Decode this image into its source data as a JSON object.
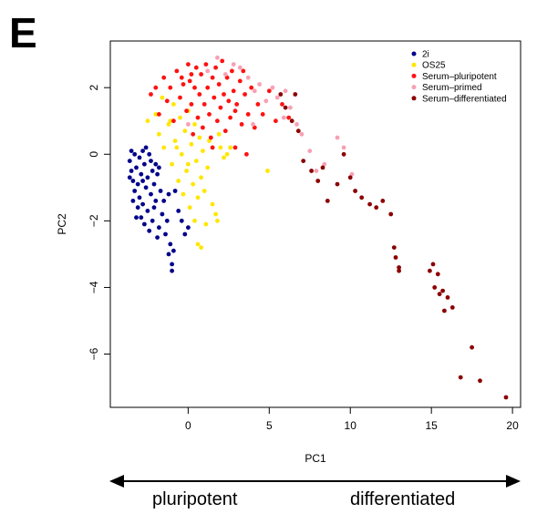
{
  "panel_label": "E",
  "arrow_labels": {
    "left": "pluripotent",
    "right": "differentiated"
  },
  "chart_data": {
    "type": "scatter",
    "xlabel": "PC1",
    "ylabel": "PC2",
    "xlim": [
      -4.8,
      20.5
    ],
    "ylim": [
      -7.6,
      3.4
    ],
    "xticks": [
      0,
      5,
      10,
      15,
      20
    ],
    "yticks": [
      2,
      0,
      -2,
      -4,
      -6
    ],
    "grid": false,
    "legend_position": "top-right",
    "series": [
      {
        "name": "2i",
        "color": "#00008b",
        "points": [
          [
            -3.6,
            -0.2
          ],
          [
            -3.5,
            -0.5
          ],
          [
            -3.4,
            -0.8
          ],
          [
            -3.3,
            -1.1
          ],
          [
            -3.2,
            -0.4
          ],
          [
            -3.1,
            -0.9
          ],
          [
            -3.0,
            -0.1
          ],
          [
            -3.0,
            -1.3
          ],
          [
            -2.9,
            -0.6
          ],
          [
            -2.8,
            0.1
          ],
          [
            -2.8,
            -1.5
          ],
          [
            -2.7,
            -0.3
          ],
          [
            -2.6,
            -1.0
          ],
          [
            -2.5,
            -0.7
          ],
          [
            -2.5,
            -1.7
          ],
          [
            -2.4,
            0.0
          ],
          [
            -2.3,
            -1.2
          ],
          [
            -2.2,
            -0.5
          ],
          [
            -2.2,
            -2.0
          ],
          [
            -2.1,
            -0.9
          ],
          [
            -2.0,
            -1.4
          ],
          [
            -1.9,
            -0.6
          ],
          [
            -1.8,
            -2.2
          ],
          [
            -1.7,
            -1.1
          ],
          [
            -1.6,
            -1.8
          ],
          [
            -3.5,
            0.1
          ],
          [
            -3.3,
            0.0
          ],
          [
            -3.1,
            -1.6
          ],
          [
            -2.9,
            -1.9
          ],
          [
            -2.7,
            -2.1
          ],
          [
            -2.6,
            0.2
          ],
          [
            -2.4,
            -2.3
          ],
          [
            -3.4,
            -1.4
          ],
          [
            -3.2,
            -1.9
          ],
          [
            -2.0,
            -0.3
          ],
          [
            -1.9,
            -2.5
          ],
          [
            -1.5,
            -1.4
          ],
          [
            -1.4,
            -2.4
          ],
          [
            -1.3,
            -2.0
          ],
          [
            -1.2,
            -1.2
          ],
          [
            -1.1,
            -2.7
          ],
          [
            -1.0,
            -3.3
          ],
          [
            -1.2,
            -3.0
          ],
          [
            -0.9,
            -2.9
          ],
          [
            -1.0,
            -3.5
          ],
          [
            -0.6,
            -1.7
          ],
          [
            -0.4,
            -2.0
          ],
          [
            0.0,
            -2.2
          ],
          [
            -0.8,
            -1.1
          ],
          [
            -0.2,
            -2.4
          ],
          [
            -3.6,
            -0.7
          ],
          [
            -2.8,
            -0.8
          ],
          [
            -2.3,
            -0.2
          ],
          [
            -2.1,
            -1.6
          ],
          [
            -1.8,
            -0.4
          ]
        ]
      },
      {
        "name": "OS25",
        "color": "#ffe600",
        "points": [
          [
            -2.5,
            1.0
          ],
          [
            -2.0,
            1.2
          ],
          [
            -1.8,
            0.6
          ],
          [
            -1.5,
            0.2
          ],
          [
            -1.2,
            0.9
          ],
          [
            -1.0,
            -0.3
          ],
          [
            -0.9,
            1.5
          ],
          [
            -0.8,
            0.4
          ],
          [
            -0.6,
            -0.8
          ],
          [
            -0.5,
            1.1
          ],
          [
            -0.4,
            0.0
          ],
          [
            -0.3,
            -1.2
          ],
          [
            -0.2,
            0.7
          ],
          [
            -0.1,
            -0.5
          ],
          [
            0.0,
            1.3
          ],
          [
            0.1,
            -1.6
          ],
          [
            0.2,
            0.3
          ],
          [
            0.3,
            -0.9
          ],
          [
            0.4,
            0.9
          ],
          [
            0.5,
            -0.2
          ],
          [
            0.6,
            -1.3
          ],
          [
            0.7,
            0.5
          ],
          [
            0.8,
            -0.7
          ],
          [
            0.9,
            0.1
          ],
          [
            1.0,
            -1.1
          ],
          [
            1.1,
            -2.1
          ],
          [
            1.2,
            -0.4
          ],
          [
            1.3,
            0.4
          ],
          [
            1.5,
            -1.5
          ],
          [
            1.7,
            -1.8
          ],
          [
            1.8,
            -2.0
          ],
          [
            0.8,
            -2.8
          ],
          [
            0.6,
            -2.7
          ],
          [
            0.4,
            -2.0
          ],
          [
            2.0,
            0.2
          ],
          [
            2.2,
            -0.1
          ],
          [
            2.4,
            0.0
          ],
          [
            1.9,
            0.6
          ],
          [
            2.6,
            0.2
          ],
          [
            4.9,
            -0.5
          ],
          [
            -1.6,
            1.7
          ],
          [
            -1.1,
            1.0
          ],
          [
            -0.7,
            0.2
          ],
          [
            0.0,
            -0.3
          ]
        ]
      },
      {
        "name": "Serum–pluripotent",
        "color": "#ff1111",
        "points": [
          [
            -2.3,
            1.8
          ],
          [
            -2.0,
            2.0
          ],
          [
            -1.8,
            1.2
          ],
          [
            -1.5,
            2.3
          ],
          [
            -1.3,
            1.6
          ],
          [
            -1.1,
            2.0
          ],
          [
            -0.9,
            1.0
          ],
          [
            -0.7,
            2.5
          ],
          [
            -0.5,
            1.7
          ],
          [
            -0.3,
            2.1
          ],
          [
            -0.1,
            1.3
          ],
          [
            0.0,
            2.7
          ],
          [
            0.1,
            2.2
          ],
          [
            0.2,
            1.5
          ],
          [
            0.3,
            0.6
          ],
          [
            0.4,
            2.0
          ],
          [
            0.5,
            2.6
          ],
          [
            0.6,
            1.1
          ],
          [
            0.7,
            1.8
          ],
          [
            0.8,
            2.4
          ],
          [
            0.9,
            0.8
          ],
          [
            1.0,
            1.5
          ],
          [
            1.1,
            2.7
          ],
          [
            1.2,
            2.0
          ],
          [
            1.3,
            1.2
          ],
          [
            1.4,
            0.5
          ],
          [
            1.5,
            2.3
          ],
          [
            1.6,
            1.7
          ],
          [
            1.7,
            2.6
          ],
          [
            1.8,
            1.0
          ],
          [
            1.9,
            2.1
          ],
          [
            2.0,
            1.4
          ],
          [
            2.1,
            2.8
          ],
          [
            2.2,
            1.8
          ],
          [
            2.3,
            0.7
          ],
          [
            2.4,
            2.3
          ],
          [
            2.5,
            1.6
          ],
          [
            2.6,
            1.1
          ],
          [
            2.7,
            2.5
          ],
          [
            2.8,
            1.9
          ],
          [
            2.9,
            0.2
          ],
          [
            3.0,
            1.5
          ],
          [
            3.2,
            2.2
          ],
          [
            3.3,
            0.9
          ],
          [
            3.5,
            1.8
          ],
          [
            3.7,
            1.2
          ],
          [
            3.9,
            2.0
          ],
          [
            4.1,
            0.8
          ],
          [
            3.6,
            0.0
          ],
          [
            4.3,
            1.5
          ],
          [
            4.6,
            1.2
          ],
          [
            5.0,
            1.9
          ],
          [
            5.4,
            1.0
          ],
          [
            5.8,
            1.5
          ],
          [
            6.2,
            1.1
          ],
          [
            1.5,
            0.2
          ],
          [
            0.2,
            2.4
          ],
          [
            -0.4,
            2.3
          ],
          [
            2.9,
            1.3
          ],
          [
            3.4,
            2.5
          ]
        ]
      },
      {
        "name": "Serum–primed",
        "color": "#f8a0b4",
        "points": [
          [
            1.8,
            2.9
          ],
          [
            2.3,
            2.4
          ],
          [
            2.8,
            2.7
          ],
          [
            3.2,
            2.6
          ],
          [
            3.7,
            2.3
          ],
          [
            4.1,
            1.9
          ],
          [
            4.4,
            2.1
          ],
          [
            4.8,
            1.6
          ],
          [
            5.2,
            2.0
          ],
          [
            5.5,
            1.7
          ],
          [
            5.9,
            1.1
          ],
          [
            6.3,
            1.4
          ],
          [
            6.7,
            0.9
          ],
          [
            7.0,
            0.6
          ],
          [
            7.5,
            0.1
          ],
          [
            7.9,
            -0.5
          ],
          [
            8.4,
            -0.3
          ],
          [
            9.2,
            0.5
          ],
          [
            9.6,
            0.2
          ],
          [
            10.1,
            -0.6
          ],
          [
            1.2,
            2.5
          ],
          [
            4.0,
            0.9
          ],
          [
            6.0,
            1.9
          ],
          [
            0.0,
            0.9
          ]
        ]
      },
      {
        "name": "Serum–differentiated",
        "color": "#8b0000",
        "points": [
          [
            5.7,
            1.8
          ],
          [
            6.0,
            1.4
          ],
          [
            6.4,
            1.0
          ],
          [
            6.8,
            0.7
          ],
          [
            6.6,
            1.8
          ],
          [
            7.1,
            -0.2
          ],
          [
            7.6,
            -0.5
          ],
          [
            8.0,
            -0.8
          ],
          [
            8.3,
            -0.4
          ],
          [
            8.6,
            -1.4
          ],
          [
            9.2,
            -0.9
          ],
          [
            9.6,
            0.0
          ],
          [
            10.0,
            -0.7
          ],
          [
            10.3,
            -1.1
          ],
          [
            10.7,
            -1.3
          ],
          [
            11.2,
            -1.5
          ],
          [
            11.6,
            -1.6
          ],
          [
            12.0,
            -1.4
          ],
          [
            12.5,
            -1.8
          ],
          [
            12.7,
            -2.8
          ],
          [
            12.8,
            -3.1
          ],
          [
            13.0,
            -3.4
          ],
          [
            15.1,
            -3.3
          ],
          [
            15.4,
            -3.6
          ],
          [
            15.5,
            -4.2
          ],
          [
            15.7,
            -4.1
          ],
          [
            16.0,
            -4.3
          ],
          [
            15.8,
            -4.7
          ],
          [
            16.3,
            -4.6
          ],
          [
            16.8,
            -6.7
          ],
          [
            17.5,
            -5.8
          ],
          [
            18.0,
            -6.8
          ],
          [
            19.6,
            -7.3
          ],
          [
            14.9,
            -3.5
          ],
          [
            15.2,
            -4.0
          ],
          [
            13.0,
            -3.5
          ]
        ]
      }
    ]
  }
}
